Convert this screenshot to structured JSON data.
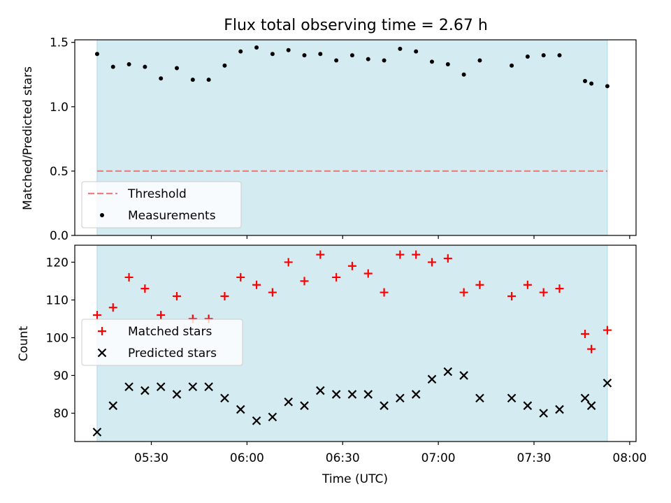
{
  "chart_data": [
    {
      "type": "scatter",
      "title": "Flux total observing time = 2.67 h",
      "ylabel": "Matched/Predicted stars",
      "xlabel": "",
      "ylim": [
        0,
        1.52
      ],
      "yticks": [
        "0.0",
        "0.5",
        "1.0",
        "1.5"
      ],
      "threshold": {
        "name": "Threshold",
        "value": 0.5,
        "color": "#f08080"
      },
      "legend": {
        "placement": "lower-left",
        "entries": [
          "Threshold",
          "Measurements"
        ]
      },
      "series": [
        {
          "name": "Measurements",
          "color": "#000000",
          "points": [
            [
              "05:13",
              1.41
            ],
            [
              "05:18",
              1.31
            ],
            [
              "05:23",
              1.33
            ],
            [
              "05:28",
              1.31
            ],
            [
              "05:33",
              1.22
            ],
            [
              "05:38",
              1.3
            ],
            [
              "05:43",
              1.21
            ],
            [
              "05:48",
              1.21
            ],
            [
              "05:53",
              1.32
            ],
            [
              "05:58",
              1.43
            ],
            [
              "06:03",
              1.46
            ],
            [
              "06:08",
              1.41
            ],
            [
              "06:13",
              1.44
            ],
            [
              "06:18",
              1.4
            ],
            [
              "06:23",
              1.41
            ],
            [
              "06:28",
              1.36
            ],
            [
              "06:33",
              1.4
            ],
            [
              "06:38",
              1.37
            ],
            [
              "06:43",
              1.36
            ],
            [
              "06:48",
              1.45
            ],
            [
              "06:53",
              1.43
            ],
            [
              "06:58",
              1.35
            ],
            [
              "07:03",
              1.33
            ],
            [
              "07:08",
              1.25
            ],
            [
              "07:13",
              1.36
            ],
            [
              "07:23",
              1.32
            ],
            [
              "07:28",
              1.39
            ],
            [
              "07:33",
              1.4
            ],
            [
              "07:38",
              1.4
            ],
            [
              "07:46",
              1.2
            ],
            [
              "07:48",
              1.18
            ],
            [
              "07:53",
              1.16
            ]
          ]
        }
      ]
    },
    {
      "type": "scatter",
      "title": "",
      "ylabel": "Count",
      "xlabel": "Time (UTC)",
      "ylim": [
        72.5,
        124.5
      ],
      "yticks": [
        "80",
        "90",
        "100",
        "110",
        "120"
      ],
      "xticks": [
        "05:30",
        "06:00",
        "06:30",
        "07:00",
        "07:30",
        "08:00"
      ],
      "legend": {
        "placement": "center-left",
        "entries": [
          "Matched stars",
          "Predicted stars"
        ]
      },
      "series": [
        {
          "name": "Matched stars",
          "color": "#ff0000",
          "marker": "plus",
          "points": [
            [
              "05:13",
              106
            ],
            [
              "05:18",
              108
            ],
            [
              "05:23",
              116
            ],
            [
              "05:28",
              113
            ],
            [
              "05:33",
              106
            ],
            [
              "05:38",
              111
            ],
            [
              "05:43",
              105
            ],
            [
              "05:48",
              105
            ],
            [
              "05:53",
              111
            ],
            [
              "05:58",
              116
            ],
            [
              "06:03",
              114
            ],
            [
              "06:08",
              112
            ],
            [
              "06:13",
              120
            ],
            [
              "06:18",
              115
            ],
            [
              "06:23",
              122
            ],
            [
              "06:28",
              116
            ],
            [
              "06:33",
              119
            ],
            [
              "06:38",
              117
            ],
            [
              "06:43",
              112
            ],
            [
              "06:48",
              122
            ],
            [
              "06:53",
              122
            ],
            [
              "06:58",
              120
            ],
            [
              "07:03",
              121
            ],
            [
              "07:08",
              112
            ],
            [
              "07:13",
              114
            ],
            [
              "07:23",
              111
            ],
            [
              "07:28",
              114
            ],
            [
              "07:33",
              112
            ],
            [
              "07:38",
              113
            ],
            [
              "07:46",
              101
            ],
            [
              "07:48",
              97
            ],
            [
              "07:53",
              102
            ]
          ]
        },
        {
          "name": "Predicted stars",
          "color": "#000000",
          "marker": "x",
          "points": [
            [
              "05:13",
              75
            ],
            [
              "05:18",
              82
            ],
            [
              "05:23",
              87
            ],
            [
              "05:28",
              86
            ],
            [
              "05:33",
              87
            ],
            [
              "05:38",
              85
            ],
            [
              "05:43",
              87
            ],
            [
              "05:48",
              87
            ],
            [
              "05:53",
              84
            ],
            [
              "05:58",
              81
            ],
            [
              "06:03",
              78
            ],
            [
              "06:08",
              79
            ],
            [
              "06:13",
              83
            ],
            [
              "06:18",
              82
            ],
            [
              "06:23",
              86
            ],
            [
              "06:28",
              85
            ],
            [
              "06:33",
              85
            ],
            [
              "06:38",
              85
            ],
            [
              "06:43",
              82
            ],
            [
              "06:48",
              84
            ],
            [
              "06:53",
              85
            ],
            [
              "06:58",
              89
            ],
            [
              "07:03",
              91
            ],
            [
              "07:08",
              90
            ],
            [
              "07:13",
              84
            ],
            [
              "07:23",
              84
            ],
            [
              "07:28",
              82
            ],
            [
              "07:33",
              80
            ],
            [
              "07:38",
              81
            ],
            [
              "07:46",
              84
            ],
            [
              "07:48",
              82
            ],
            [
              "07:53",
              88
            ]
          ]
        }
      ]
    }
  ],
  "shared_x": {
    "range": [
      "05:06",
      "08:02"
    ],
    "observing_window": [
      "05:13",
      "07:53"
    ],
    "window_color": "#add8e6"
  }
}
